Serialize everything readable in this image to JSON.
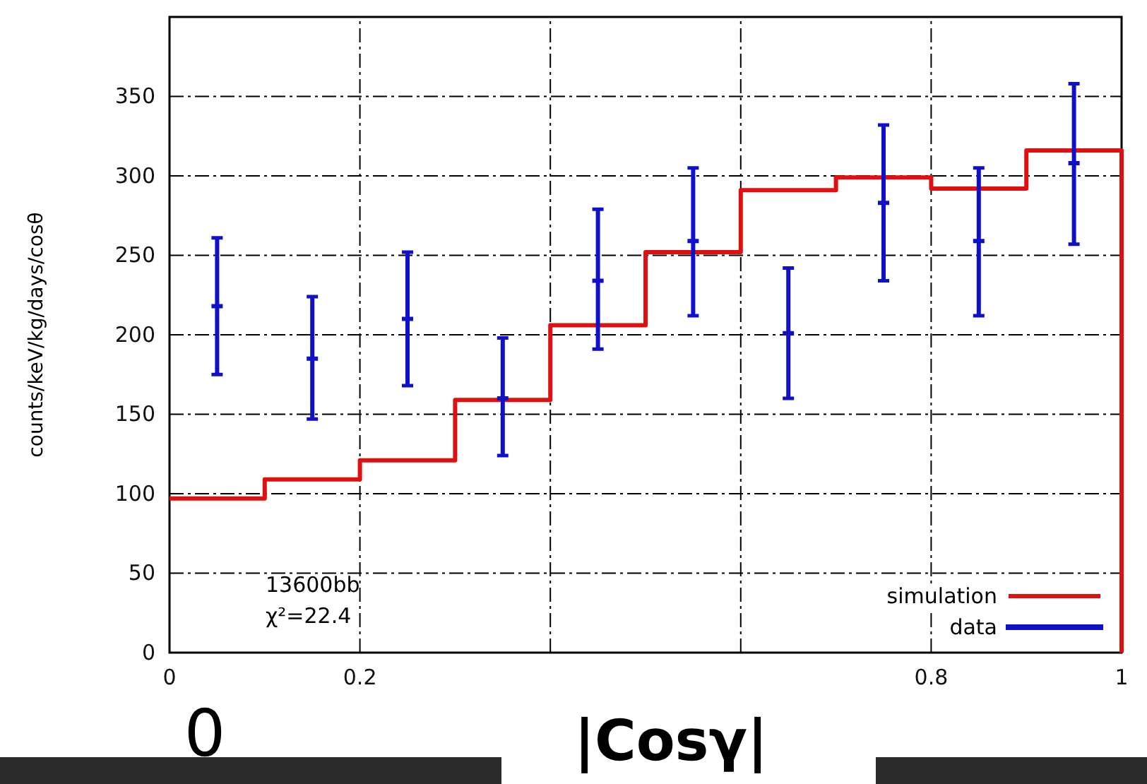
{
  "chart_data": {
    "type": "scatter",
    "xlabel": "|Cosγ|",
    "ylabel": "counts/keV/kg/days/cosθ",
    "xlim": [
      0,
      1
    ],
    "xticks": [
      0,
      0.2,
      {
        "value": 0.4,
        "label": null
      },
      {
        "value": 0.6,
        "label": null
      },
      0.8,
      1
    ],
    "ylim": [
      0,
      400
    ],
    "yticks": [
      0,
      50,
      100,
      150,
      200,
      250,
      300,
      350
    ],
    "grid": true,
    "legend": "bottom right",
    "series": [
      {
        "name": "simulation",
        "type": "step",
        "color": "#e01010",
        "x": [
          0,
          0.1,
          0.2,
          0.3,
          0.4,
          0.5,
          0.6,
          0.7,
          0.8,
          0.9,
          1.0
        ],
        "values": [
          97,
          109,
          121,
          159,
          206,
          252,
          291,
          299,
          292,
          316,
          0
        ]
      },
      {
        "name": "data",
        "color": "#1010c8",
        "x": [
          0.05,
          0.15,
          0.25,
          0.35,
          0.45,
          0.55,
          0.65,
          0.75,
          0.85,
          0.95
        ],
        "values": [
          218,
          185,
          210,
          160,
          234,
          259,
          201,
          283,
          259,
          308
        ],
        "errors": [
          [
            175,
            261
          ],
          [
            147,
            224
          ],
          [
            168,
            252
          ],
          [
            124,
            198
          ],
          [
            191,
            279
          ],
          [
            212,
            305
          ],
          [
            160,
            242
          ],
          [
            234,
            332
          ],
          [
            212,
            305
          ],
          [
            257,
            358
          ]
        ]
      }
    ],
    "annotations": [
      "13600bb",
      "χ²=22.4",
      "0"
    ]
  }
}
